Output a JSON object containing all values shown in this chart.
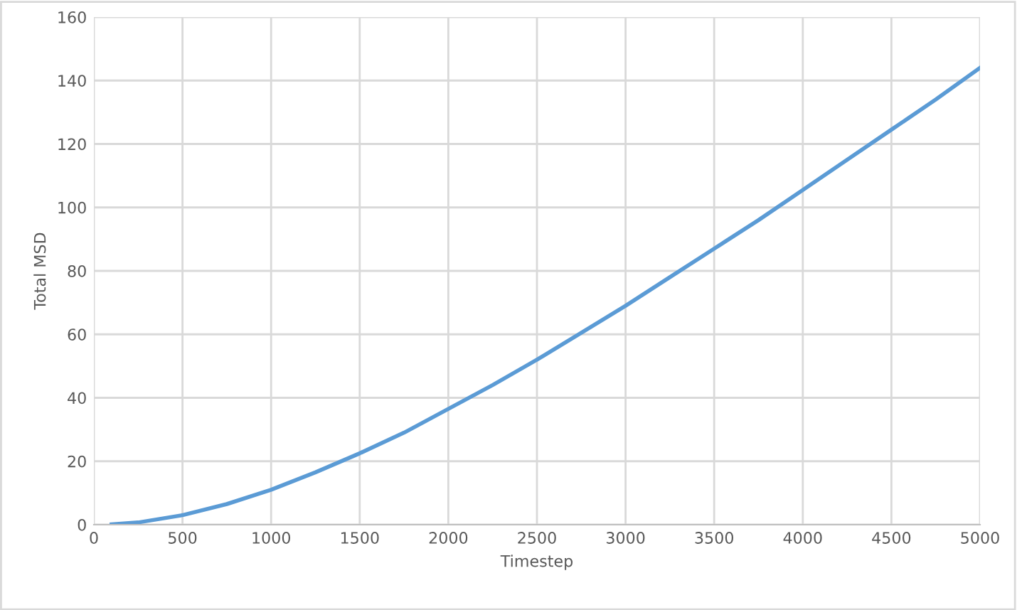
{
  "chart_data": {
    "type": "line",
    "xlabel": "Timestep",
    "ylabel": "Total MSD",
    "series": [
      {
        "color": "#5b9bd5",
        "x": [
          100,
          250,
          500,
          750,
          1000,
          1250,
          1500,
          1750,
          2000,
          2250,
          2500,
          2750,
          3000,
          3250,
          3500,
          3750,
          4000,
          4250,
          4500,
          4750,
          5000
        ],
        "values": [
          0.1,
          0.7,
          3,
          6.5,
          11,
          16.5,
          22.5,
          29,
          36.5,
          44,
          52,
          60.5,
          69,
          78,
          87,
          96,
          105.5,
          115,
          124.5,
          134,
          144
        ]
      }
    ],
    "xlim": [
      0,
      5000
    ],
    "xticks": [
      0,
      500,
      1000,
      1500,
      2000,
      2500,
      3000,
      3500,
      4000,
      4500,
      5000
    ],
    "ylim": [
      0,
      160
    ],
    "yticks": [
      0,
      20,
      40,
      60,
      80,
      100,
      120,
      140,
      160
    ],
    "grid": true,
    "marker": "none",
    "line_style": "solid"
  }
}
